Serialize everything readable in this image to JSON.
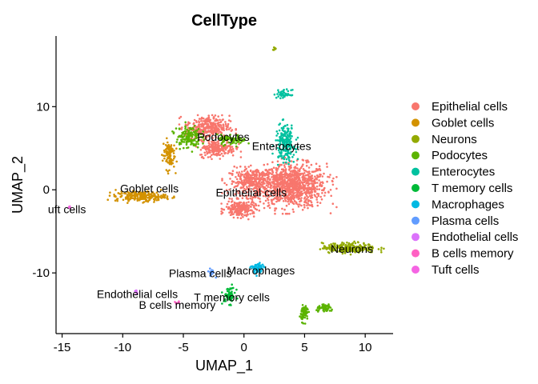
{
  "chart_data": {
    "type": "scatter",
    "title": "CellType",
    "xlabel": "UMAP_1",
    "ylabel": "UMAP_2",
    "xlim": [
      -15.5,
      12.3
    ],
    "ylim": [
      -17.3,
      18.5
    ],
    "xticks": [
      -15,
      -10,
      -5,
      0,
      5,
      10
    ],
    "yticks": [
      -10,
      0,
      10
    ],
    "legend_position": "right",
    "series": [
      {
        "name": "Epithelial cells",
        "color": "#F8766D",
        "clusters": [
          {
            "cx": 4.0,
            "cy": 0.5,
            "rx": 2.8,
            "ry": 2.6,
            "n": 900
          },
          {
            "cx": 0.8,
            "cy": 1.0,
            "rx": 2.0,
            "ry": 1.6,
            "n": 350
          },
          {
            "cx": -0.3,
            "cy": -2.3,
            "rx": 1.2,
            "ry": 1.0,
            "n": 200
          },
          {
            "cx": -3.0,
            "cy": 7.5,
            "rx": 1.8,
            "ry": 1.4,
            "n": 300
          },
          {
            "cx": -2.2,
            "cy": 5.0,
            "rx": 1.5,
            "ry": 1.0,
            "n": 200
          }
        ]
      },
      {
        "name": "Goblet cells",
        "color": "#D39200",
        "clusters": [
          {
            "cx": -8.5,
            "cy": -0.8,
            "rx": 2.1,
            "ry": 0.6,
            "n": 220
          },
          {
            "cx": -6.2,
            "cy": 4.3,
            "rx": 0.5,
            "ry": 1.8,
            "n": 100
          }
        ]
      },
      {
        "name": "Neurons",
        "color": "#93AA00",
        "clusters": [
          {
            "cx": 8.7,
            "cy": -7.0,
            "rx": 2.2,
            "ry": 0.6,
            "n": 220
          },
          {
            "cx": 2.5,
            "cy": 17.0,
            "rx": 0.2,
            "ry": 0.2,
            "n": 8
          }
        ]
      },
      {
        "name": "Podocytes",
        "color": "#5BB300",
        "clusters": [
          {
            "cx": -4.6,
            "cy": 6.4,
            "rx": 1.0,
            "ry": 1.4,
            "n": 150
          },
          {
            "cx": -1.0,
            "cy": 6.0,
            "rx": 1.2,
            "ry": 0.6,
            "n": 80
          },
          {
            "cx": 5.0,
            "cy": -14.8,
            "rx": 0.3,
            "ry": 1.0,
            "n": 70
          },
          {
            "cx": 6.7,
            "cy": -14.3,
            "rx": 0.7,
            "ry": 0.4,
            "n": 60
          }
        ]
      },
      {
        "name": "Enterocytes",
        "color": "#00C19F",
        "clusters": [
          {
            "cx": 3.4,
            "cy": 5.6,
            "rx": 0.8,
            "ry": 2.2,
            "n": 200
          },
          {
            "cx": 3.3,
            "cy": 11.5,
            "rx": 0.6,
            "ry": 0.5,
            "n": 50
          }
        ]
      },
      {
        "name": "T memory cells",
        "color": "#00BA38",
        "clusters": [
          {
            "cx": -1.2,
            "cy": -12.7,
            "rx": 0.5,
            "ry": 1.0,
            "n": 60
          }
        ]
      },
      {
        "name": "Macrophages",
        "color": "#00B9E3",
        "clusters": [
          {
            "cx": 1.1,
            "cy": -9.5,
            "rx": 0.5,
            "ry": 0.7,
            "n": 60
          }
        ]
      },
      {
        "name": "Plasma cells",
        "color": "#619CFF",
        "clusters": [
          {
            "cx": -2.7,
            "cy": -9.9,
            "rx": 0.3,
            "ry": 0.5,
            "n": 20
          }
        ]
      },
      {
        "name": "Endothelial cells",
        "color": "#DB72FB",
        "clusters": [
          {
            "cx": -8.9,
            "cy": -12.3,
            "rx": 0.2,
            "ry": 0.3,
            "n": 6
          }
        ]
      },
      {
        "name": "B cells memory",
        "color": "#FF61C3",
        "clusters": [
          {
            "cx": -5.5,
            "cy": -13.6,
            "rx": 0.25,
            "ry": 0.15,
            "n": 8
          }
        ]
      },
      {
        "name": "Tuft cells",
        "color": "#F564E3",
        "clusters": [
          {
            "cx": -14.4,
            "cy": -2.1,
            "rx": 0.15,
            "ry": 0.2,
            "n": 4
          }
        ]
      }
    ],
    "annotations": [
      {
        "text": "Podocytes",
        "x": -1.7,
        "y": 5.9
      },
      {
        "text": "Enterocytes",
        "x": 3.1,
        "y": 4.8
      },
      {
        "text": "Goblet cells",
        "x": -7.8,
        "y": -0.3
      },
      {
        "text": "Epithelial cells",
        "x": 0.6,
        "y": -0.8
      },
      {
        "text": "uft cells",
        "x": -14.6,
        "y": -2.8
      },
      {
        "text": "Neurons",
        "x": 8.9,
        "y": -7.6
      },
      {
        "text": "Macrophages",
        "x": 1.4,
        "y": -10.2
      },
      {
        "text": "Plasma cells",
        "x": -3.6,
        "y": -10.5
      },
      {
        "text": "Endothelial cells",
        "x": -8.8,
        "y": -13.0
      },
      {
        "text": "T memory cells",
        "x": -1.0,
        "y": -13.4
      },
      {
        "text": "B cells memory",
        "x": -5.5,
        "y": -14.3
      }
    ]
  }
}
